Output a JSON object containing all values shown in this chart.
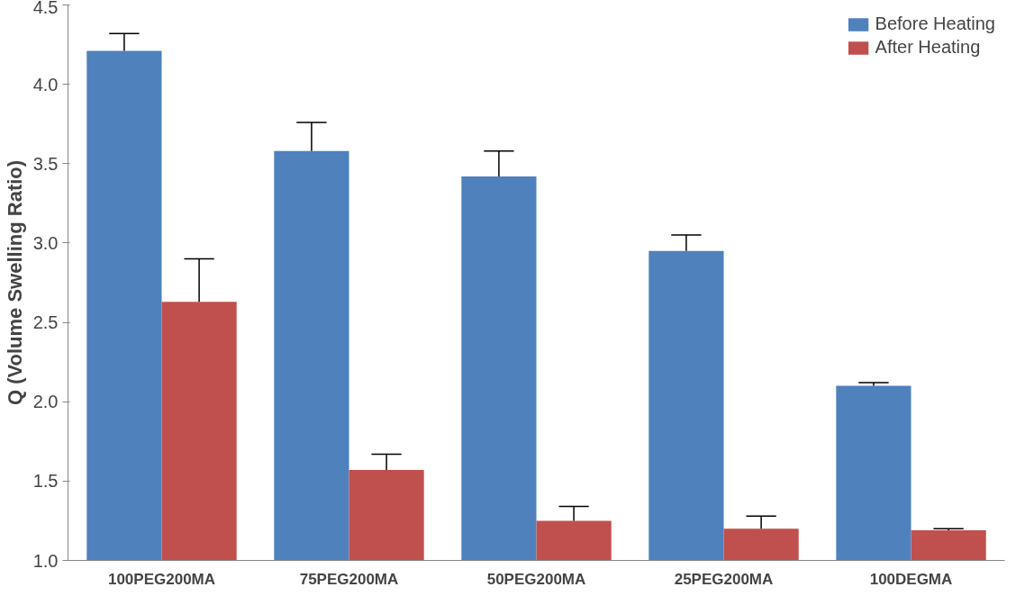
{
  "chart_data": {
    "type": "bar",
    "ylabel": "Q (Volume Swelling Ratio)",
    "categories": [
      "100PEG200MA",
      "75PEG200MA",
      "50PEG200MA",
      "25PEG200MA",
      "100DEGMA"
    ],
    "series": [
      {
        "name": "Before Heating",
        "color": "#4f81bd",
        "values": [
          4.21,
          3.58,
          3.42,
          2.95,
          2.1
        ],
        "errors": [
          [
            4.21,
            4.32
          ],
          [
            3.58,
            3.76
          ],
          [
            3.42,
            3.58
          ],
          [
            2.95,
            3.05
          ],
          [
            2.1,
            2.12
          ]
        ]
      },
      {
        "name": "After Heating",
        "color": "#c0504d",
        "values": [
          2.63,
          1.57,
          1.25,
          1.2,
          1.19
        ],
        "errors": [
          [
            2.63,
            2.9
          ],
          [
            1.57,
            1.67
          ],
          [
            1.25,
            1.34
          ],
          [
            1.2,
            1.28
          ],
          [
            1.19,
            1.2
          ]
        ]
      }
    ],
    "ylim": [
      1.0,
      4.5
    ],
    "yticks": [
      {
        "value": 1.0,
        "label": "1.0"
      },
      {
        "value": 1.5,
        "label": "1.5"
      },
      {
        "value": 2.0,
        "label": "2.0"
      },
      {
        "value": 2.5,
        "label": "2.5"
      },
      {
        "value": 3.0,
        "label": "3.0"
      },
      {
        "value": 3.5,
        "label": "3.5"
      },
      {
        "value": 4.0,
        "label": "4.0"
      },
      {
        "value": 4.5,
        "label": "4.5"
      }
    ],
    "grid": false,
    "legend": "top right"
  }
}
